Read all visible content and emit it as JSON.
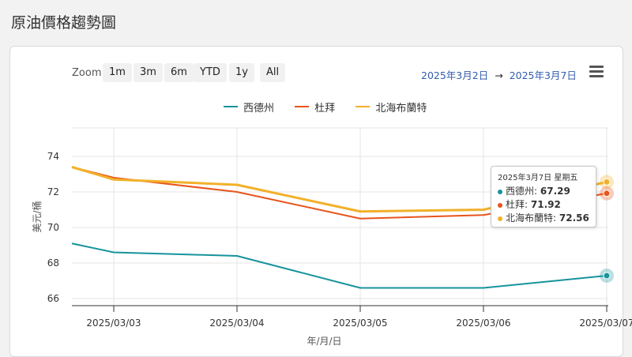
{
  "page": {
    "title": "原油價格趨勢圖"
  },
  "toolbar": {
    "zoom_label": "Zoom",
    "zoom_buttons": [
      "1m",
      "3m",
      "6m",
      "YTD",
      "1y",
      "All"
    ],
    "range_from": "2025年3月2日",
    "range_arrow": "→",
    "range_to": "2025年3月7日"
  },
  "colors": {
    "wti": "#17939c",
    "dubai": "#e8541c",
    "brent": "#f2b02a"
  },
  "tooltip": {
    "date": "2025年3月7日 星期五",
    "rows": [
      {
        "name": "西德州",
        "value": "67.29"
      },
      {
        "name": "杜拜",
        "value": "71.92"
      },
      {
        "name": "北海布蘭特",
        "value": "72.56"
      }
    ]
  },
  "chart_data": {
    "type": "line",
    "x": [
      "2025/03/02",
      "2025/03/03",
      "2025/03/04",
      "2025/03/05",
      "2025/03/06",
      "2025/03/07"
    ],
    "xticks": [
      "2025/03/03",
      "2025/03/04",
      "2025/03/05",
      "2025/03/06",
      "2025/03/07"
    ],
    "xlabel": "年/月/日",
    "ylabel": "美元/桶",
    "yticks": [
      66,
      68,
      70,
      72,
      74
    ],
    "ylim": [
      65.6,
      75.6
    ],
    "series": [
      {
        "name": "西德州",
        "values": [
          69.1,
          68.6,
          68.4,
          66.6,
          66.6,
          67.29
        ]
      },
      {
        "name": "杜拜",
        "values": [
          73.4,
          72.8,
          72.0,
          70.5,
          70.7,
          71.92
        ]
      },
      {
        "name": "北海布蘭特",
        "values": [
          73.4,
          72.7,
          72.4,
          70.9,
          71.0,
          72.56
        ]
      }
    ]
  }
}
